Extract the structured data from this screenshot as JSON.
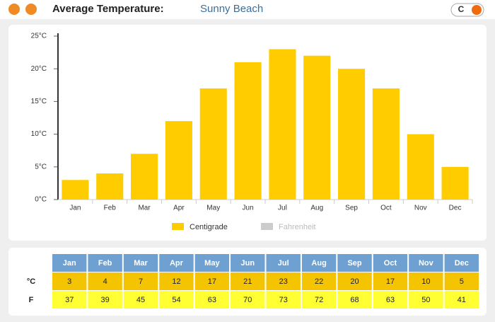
{
  "header": {
    "title": "Average Temperature:",
    "location": "Sunny Beach",
    "toggle": "C"
  },
  "chart_data": {
    "type": "bar",
    "categories": [
      "Jan",
      "Feb",
      "Mar",
      "Apr",
      "May",
      "Jun",
      "Jul",
      "Aug",
      "Sep",
      "Oct",
      "Nov",
      "Dec"
    ],
    "series": [
      {
        "name": "Centigrade",
        "color": "#ffcc00",
        "values": [
          3,
          4,
          7,
          12,
          17,
          21,
          23,
          22,
          20,
          17,
          10,
          5
        ]
      }
    ],
    "legend": [
      {
        "name": "Centigrade",
        "color": "#ffcc00"
      },
      {
        "name": "Fahrenheit",
        "color": "#cccccc"
      }
    ],
    "ylim": [
      0,
      25
    ],
    "yticks": [
      {
        "value": 0,
        "label": "0°C"
      },
      {
        "value": 5,
        "label": "5°C"
      },
      {
        "value": 10,
        "label": "10°C"
      },
      {
        "value": 15,
        "label": "15°C"
      },
      {
        "value": 20,
        "label": "20°C"
      },
      {
        "value": 25,
        "label": "25°C"
      }
    ]
  },
  "table": {
    "row_labels": [
      "°C",
      "F"
    ],
    "fahrenheit": [
      37,
      39,
      45,
      54,
      63,
      70,
      73,
      72,
      68,
      63,
      50,
      41
    ]
  }
}
